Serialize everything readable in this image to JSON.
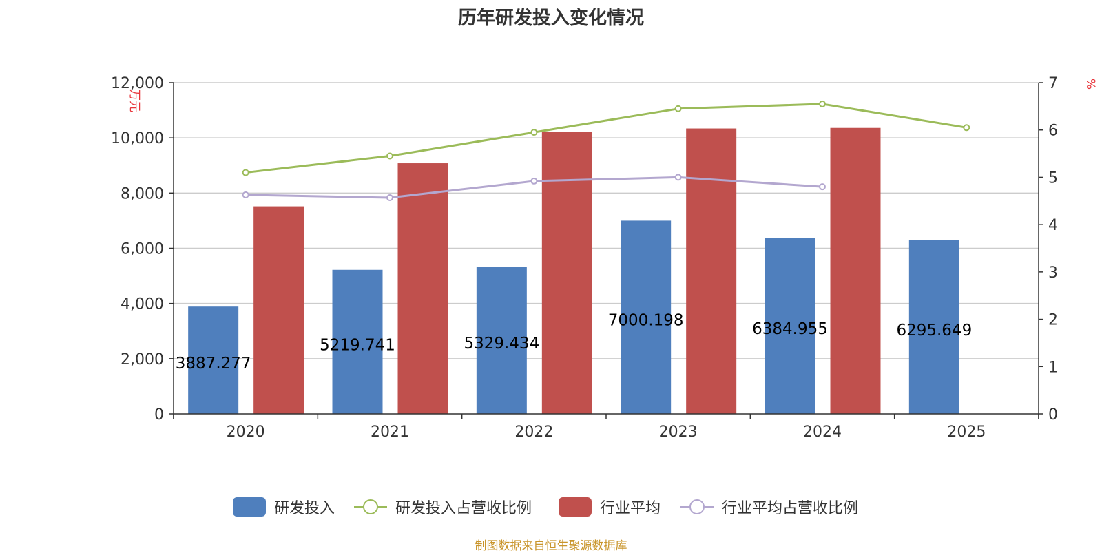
{
  "chart_data": {
    "type": "bar",
    "title": "历年研发投入变化情况",
    "categories": [
      "2020",
      "2021",
      "2022",
      "2023",
      "2024",
      "2025"
    ],
    "left_axis": {
      "unit": "万元",
      "min": 0,
      "max": 12000,
      "interval": 2000,
      "ticks": [
        "0",
        "2,000",
        "4,000",
        "6,000",
        "8,000",
        "10,000",
        "12,000"
      ]
    },
    "right_axis": {
      "unit": "%",
      "min": 0,
      "max": 7,
      "interval": 1,
      "ticks": [
        "0",
        "1",
        "2",
        "3",
        "4",
        "5",
        "6",
        "7"
      ]
    },
    "series": [
      {
        "name": "研发投入",
        "type": "bar",
        "axis": "left",
        "color": "#4f7fbd",
        "values": [
          3887.277,
          5219.741,
          5329.434,
          7000.198,
          6384.955,
          6295.649
        ],
        "labels": [
          "3887.277",
          "5219.741",
          "5329.434",
          "7000.198",
          "6384.955",
          "6295.649"
        ]
      },
      {
        "name": "研发投入占营收比例",
        "type": "line",
        "axis": "right",
        "color": "#9bbb59",
        "values": [
          5.1,
          5.45,
          5.95,
          6.45,
          6.55,
          6.05
        ]
      },
      {
        "name": "行业平均",
        "type": "bar",
        "axis": "left",
        "color": "#c0504d",
        "values": [
          7520,
          9080,
          10220,
          10340,
          10360,
          null
        ]
      },
      {
        "name": "行业平均占营收比例",
        "type": "line",
        "axis": "right",
        "color": "#b3a7cf",
        "values": [
          4.63,
          4.57,
          4.92,
          5.0,
          4.8,
          null
        ]
      }
    ],
    "grid": true,
    "legend_position": "bottom"
  },
  "footer": {
    "source": "制图数据来自恒生聚源数据库"
  }
}
